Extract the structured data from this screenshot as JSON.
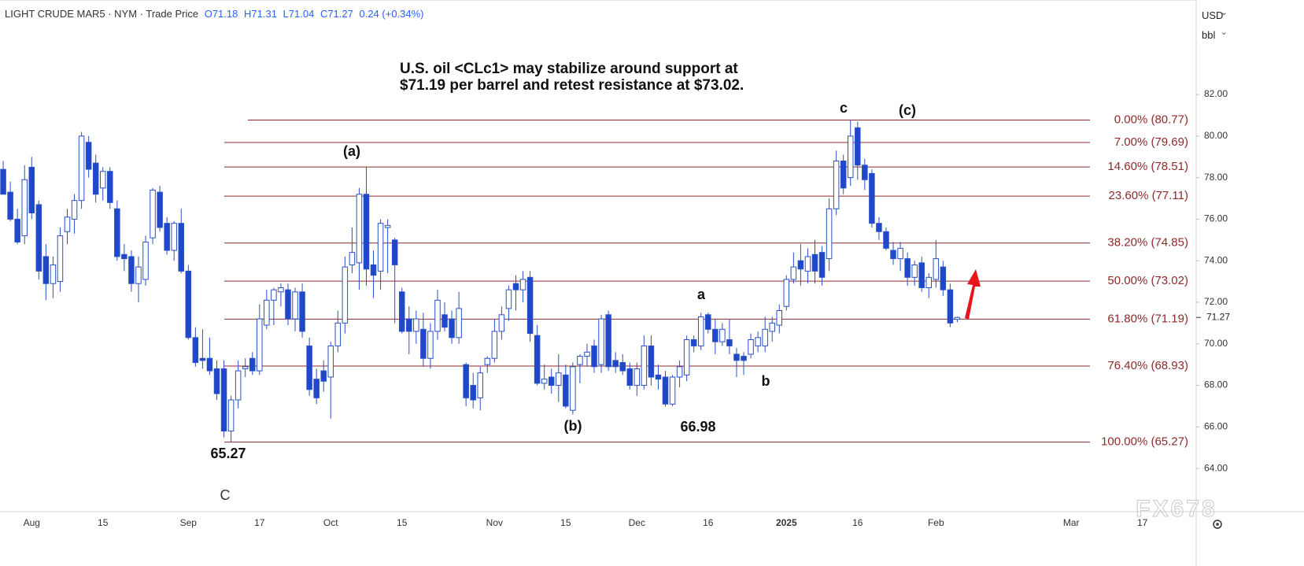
{
  "chart_data": {
    "type": "candlestick",
    "header": {
      "symbol": "LIGHT CRUDE MAR5 · NYM · Trade Price",
      "ohlc": [
        "O71.18",
        "H71.31",
        "L71.04",
        "C71.27",
        "0.24 (+0.34%)"
      ]
    },
    "title_lines": [
      "U.S. oil <CLc1> may stabilize around support at",
      "$71.19 per barrel and retest resistance at $73.02."
    ],
    "currency": "USD",
    "unit": "bbl",
    "watermark": "FX678",
    "categories": [
      null,
      null,
      null,
      null,
      "Aug",
      null,
      null,
      null,
      null,
      null,
      null,
      null,
      null,
      null,
      "15",
      null,
      null,
      null,
      null,
      null,
      null,
      null,
      null,
      null,
      null,
      null,
      "Sep",
      null,
      null,
      null,
      null,
      null,
      null,
      null,
      null,
      null,
      "17",
      null,
      null,
      null,
      null,
      null,
      null,
      null,
      null,
      null,
      "Oct",
      null,
      null,
      null,
      null,
      null,
      null,
      null,
      null,
      null,
      "15",
      null,
      null,
      null,
      null,
      null,
      null,
      null,
      null,
      null,
      null,
      null,
      null,
      "Nov",
      null,
      null,
      null,
      null,
      null,
      null,
      null,
      null,
      null,
      "15",
      null,
      null,
      null,
      null,
      null,
      null,
      null,
      null,
      null,
      "Dec",
      null,
      null,
      null,
      null,
      null,
      null,
      null,
      null,
      null,
      "16",
      null,
      null,
      null,
      null,
      null,
      null,
      null,
      null,
      null,
      null,
      "2025",
      null,
      null,
      null,
      null,
      null,
      null,
      null,
      null,
      null,
      "16",
      null,
      null,
      null,
      null,
      null,
      null,
      null,
      null,
      null,
      null,
      "Feb",
      null,
      null,
      null,
      null,
      null,
      null,
      null,
      null,
      null,
      null,
      null,
      null,
      null,
      null,
      null,
      null,
      null,
      null,
      "Mar",
      null,
      null,
      null,
      null,
      null,
      null,
      null,
      null,
      null,
      "17",
      null,
      null,
      null,
      null,
      null,
      null,
      null
    ],
    "open": [
      78.4,
      77.3,
      76.0,
      75.2,
      78.5,
      76.7,
      74.2,
      72.9,
      73.0,
      75.4,
      76.0,
      76.9,
      79.7,
      78.7,
      77.5,
      78.3,
      76.5,
      74.3,
      74.2,
      72.9,
      73.1,
      75.1,
      77.3,
      75.8,
      74.5,
      75.8,
      73.5,
      70.3,
      69.3,
      69.3,
      68.8,
      68.8,
      65.8,
      67.3,
      68.8,
      69.3,
      68.7,
      70.9,
      72.1,
      72.5,
      72.6,
      71.2,
      72.5,
      69.9,
      68.3,
      68.7,
      68.4,
      69.9,
      71.0,
      73.8,
      73.9,
      77.2,
      73.8,
      73.5,
      75.6,
      75.0,
      72.5,
      71.2,
      70.6,
      70.7,
      69.3,
      70.6,
      71.4,
      71.2,
      70.3,
      69.0,
      68.0,
      67.4,
      69.0,
      69.3,
      70.6,
      71.7,
      72.9,
      72.6,
      73.2,
      70.4,
      68.1,
      68.4,
      68.0,
      68.5,
      66.8,
      69.0,
      69.4,
      69.9,
      69.0,
      71.4,
      69.2,
      69.1,
      68.8,
      68.0,
      68.0,
      69.9,
      68.5,
      68.4,
      67.1,
      68.4,
      68.5,
      70.2,
      69.9,
      71.4,
      70.7,
      70.1,
      70.2,
      69.5,
      69.4,
      69.5,
      69.9,
      69.9,
      70.6,
      70.9,
      71.8,
      73.1,
      74.0,
      73.5,
      74.3,
      74.4,
      74.1,
      76.5,
      78.8,
      78.0,
      80.4,
      78.6,
      78.2,
      75.8,
      75.4,
      74.5,
      74.1,
      74.1,
      73.2,
      73.9,
      72.7,
      73.1,
      73.7,
      72.6,
      71.18,
      null,
      null,
      null,
      null,
      null,
      null,
      null,
      null,
      null,
      null,
      null,
      null,
      null,
      null,
      null,
      null,
      null,
      null,
      null,
      null,
      null,
      null,
      null,
      null,
      null,
      null,
      null,
      null,
      null,
      null,
      null,
      null,
      null
    ],
    "high": [
      78.8,
      77.8,
      76.5,
      78.6,
      79.0,
      76.9,
      74.8,
      74.2,
      75.6,
      76.5,
      77.2,
      80.2,
      80.0,
      79.1,
      78.5,
      78.5,
      76.9,
      74.8,
      74.5,
      74.2,
      75.2,
      77.5,
      77.6,
      76.1,
      75.9,
      76.5,
      73.8,
      70.8,
      70.7,
      70.3,
      69.2,
      69.2,
      67.5,
      69.2,
      69.3,
      69.6,
      71.9,
      72.6,
      72.7,
      72.9,
      72.9,
      72.7,
      72.9,
      70.3,
      68.8,
      69.2,
      70.1,
      71.6,
      74.2,
      75.6,
      77.5,
      78.5,
      74.5,
      76.0,
      76.0,
      75.1,
      72.7,
      71.8,
      71.6,
      71.5,
      71.0,
      72.6,
      72.0,
      71.6,
      72.5,
      69.1,
      68.6,
      68.9,
      69.4,
      71.2,
      71.8,
      72.8,
      73.3,
      73.5,
      73.5,
      70.9,
      69.0,
      68.8,
      69.5,
      69.0,
      69.1,
      69.5,
      70.0,
      70.2,
      71.4,
      71.6,
      69.6,
      69.5,
      69.1,
      69.1,
      70.4,
      70.4,
      69.0,
      68.7,
      68.5,
      69.2,
      70.4,
      70.4,
      71.5,
      71.5,
      71.2,
      71.0,
      71.2,
      69.8,
      69.6,
      70.5,
      70.6,
      71.3,
      71.3,
      71.9,
      73.3,
      74.4,
      74.8,
      74.6,
      75.0,
      74.7,
      77.0,
      79.3,
      79.1,
      80.77,
      80.7,
      78.9,
      78.4,
      76.1,
      75.6,
      74.9,
      74.9,
      74.4,
      74.0,
      74.2,
      73.4,
      75.0,
      74.0,
      72.9,
      71.31,
      null,
      null,
      null,
      null,
      null,
      null,
      null,
      null,
      null,
      null,
      null,
      null,
      null,
      null,
      null,
      null,
      null,
      null,
      null,
      null,
      null,
      null,
      null,
      null,
      null,
      null,
      null,
      null,
      null,
      null,
      null,
      null,
      null
    ],
    "low": [
      77.2,
      75.9,
      74.8,
      74.8,
      76.0,
      73.1,
      72.1,
      72.2,
      72.5,
      74.8,
      75.3,
      76.5,
      78.0,
      76.8,
      76.9,
      76.5,
      74.0,
      73.5,
      72.5,
      72.0,
      72.8,
      74.8,
      75.4,
      74.3,
      74.0,
      73.4,
      70.2,
      68.9,
      68.8,
      68.5,
      67.3,
      65.5,
      65.27,
      66.9,
      68.4,
      68.5,
      68.5,
      70.7,
      70.9,
      71.8,
      70.9,
      70.6,
      70.3,
      67.5,
      67.1,
      67.7,
      66.4,
      69.6,
      70.5,
      73.4,
      72.6,
      72.8,
      72.2,
      72.6,
      73.4,
      71.0,
      70.5,
      69.5,
      70.0,
      68.9,
      68.8,
      70.2,
      70.6,
      70.0,
      70.0,
      67.0,
      66.9,
      66.8,
      68.6,
      69.1,
      70.2,
      71.1,
      71.6,
      72.0,
      70.1,
      68.0,
      67.8,
      67.6,
      67.2,
      66.9,
      66.6,
      68.1,
      68.9,
      68.6,
      68.6,
      68.7,
      68.6,
      68.5,
      67.8,
      67.5,
      67.8,
      68.0,
      67.8,
      66.98,
      67.0,
      67.9,
      68.2,
      69.6,
      69.7,
      70.5,
      69.5,
      69.9,
      69.5,
      68.4,
      68.5,
      69.3,
      69.6,
      69.6,
      70.1,
      70.5,
      71.6,
      72.9,
      72.8,
      72.9,
      72.9,
      72.8,
      73.5,
      76.2,
      77.2,
      77.6,
      77.9,
      77.4,
      75.6,
      75.0,
      74.5,
      73.8,
      73.5,
      72.8,
      72.8,
      72.5,
      72.2,
      72.7,
      72.3,
      70.8,
      71.04,
      null,
      null,
      null,
      null,
      null,
      null,
      null,
      null,
      null,
      null,
      null,
      null,
      null,
      null,
      null,
      null,
      null,
      null,
      null,
      null,
      null,
      null,
      null,
      null,
      null,
      null,
      null,
      null,
      null,
      null,
      null,
      null,
      null
    ],
    "close": [
      77.2,
      76.0,
      74.9,
      77.9,
      76.3,
      73.5,
      72.9,
      73.8,
      75.2,
      76.1,
      76.9,
      80.0,
      78.4,
      77.2,
      78.3,
      76.8,
      74.2,
      74.1,
      72.9,
      73.7,
      74.9,
      77.4,
      75.6,
      74.5,
      75.8,
      73.5,
      70.3,
      69.1,
      69.2,
      68.7,
      67.6,
      65.8,
      67.3,
      68.7,
      68.9,
      68.7,
      71.2,
      72.1,
      72.6,
      72.7,
      71.2,
      72.5,
      70.6,
      67.8,
      67.4,
      68.2,
      69.9,
      71.0,
      73.7,
      74.4,
      77.2,
      73.6,
      73.3,
      75.8,
      75.7,
      73.8,
      70.6,
      70.6,
      71.2,
      69.3,
      70.6,
      72.1,
      70.8,
      70.3,
      71.7,
      67.4,
      67.3,
      68.6,
      69.3,
      70.6,
      71.4,
      72.6,
      72.6,
      73.1,
      70.5,
      68.1,
      68.3,
      68.0,
      68.6,
      67.0,
      68.9,
      69.4,
      69.6,
      68.9,
      71.2,
      68.9,
      68.9,
      68.7,
      68.0,
      68.8,
      69.9,
      68.4,
      68.3,
      67.1,
      68.4,
      68.9,
      70.2,
      69.9,
      71.3,
      70.7,
      70.1,
      70.7,
      69.9,
      69.2,
      69.2,
      70.2,
      70.3,
      70.7,
      71.0,
      71.6,
      73.1,
      73.7,
      73.6,
      74.2,
      73.5,
      73.2,
      76.5,
      78.8,
      77.5,
      80.0,
      78.6,
      77.9,
      75.8,
      75.4,
      74.6,
      74.1,
      74.6,
      73.2,
      73.8,
      72.7,
      73.2,
      74.1,
      72.6,
      71.0,
      71.27,
      null,
      null,
      null,
      null,
      null,
      null,
      null,
      null,
      null,
      null,
      null,
      null,
      null,
      null,
      null,
      null,
      null,
      null,
      null,
      null,
      null,
      null,
      null,
      null,
      null,
      null,
      null,
      null,
      null,
      null,
      null,
      null,
      null
    ],
    "up_color": "#ffffff",
    "down_color": "#1e48c9",
    "edge_color": "#2b50c8",
    "ylim": [
      61.92,
      86.55
    ],
    "yticks": [
      {
        "value": 64,
        "label": "64.00"
      },
      {
        "value": 66,
        "label": "66.00"
      },
      {
        "value": 68,
        "label": "68.00"
      },
      {
        "value": 70,
        "label": "70.00"
      },
      {
        "value": 72,
        "label": "72.00"
      },
      {
        "value": 74,
        "label": "74.00"
      },
      {
        "value": 76,
        "label": "76.00"
      },
      {
        "value": 78,
        "label": "78.00"
      },
      {
        "value": 80,
        "label": "80.00"
      },
      {
        "value": 82,
        "label": "82.00"
      }
    ],
    "last_price": 71.27,
    "fib_color": "#8e2a2a",
    "fib_levels": [
      {
        "label": "0.00% (80.77)",
        "value": 80.77
      },
      {
        "label": "7.00% (79.69)",
        "value": 79.69
      },
      {
        "label": "14.60% (78.51)",
        "value": 78.51
      },
      {
        "label": "23.60% (77.11)",
        "value": 77.11
      },
      {
        "label": "38.20% (74.85)",
        "value": 74.85
      },
      {
        "label": "50.00% (73.02)",
        "value": 73.02
      },
      {
        "label": "61.80% (71.19)",
        "value": 71.19
      },
      {
        "label": "76.40% (68.93)",
        "value": 68.93
      },
      {
        "label": "100.00% (65.27)",
        "value": 65.27
      }
    ],
    "annotations": [
      "(a)",
      "c",
      "(c)",
      "a",
      "b",
      "(b)",
      "66.98",
      "65.27",
      "C"
    ]
  }
}
